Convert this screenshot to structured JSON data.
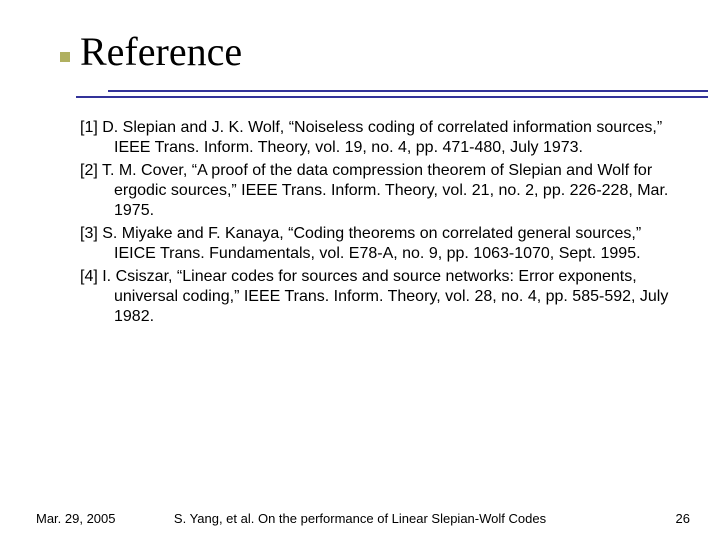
{
  "colors": {
    "rule": "#333399",
    "bullet": "#b0b060",
    "background": "#ffffff",
    "text": "#000000"
  },
  "title": "Reference",
  "references": [
    "[1] D. Slepian and J. K. Wolf, “Noiseless coding of correlated information sources,” IEEE Trans. Inform. Theory, vol. 19, no. 4, pp. 471-480, July 1973.",
    "[2] T. M. Cover, “A proof of the data compression theorem of Slepian and Wolf for ergodic sources,” IEEE Trans. Inform. Theory, vol. 21, no. 2, pp. 226-228, Mar. 1975.",
    "[3] S. Miyake and F. Kanaya, “Coding theorems on correlated general sources,” IEICE Trans. Fundamentals, vol. E78-A, no. 9, pp. 1063-1070, Sept. 1995.",
    "[4] I. Csiszar, “Linear codes for sources and source networks: Error exponents, universal coding,” IEEE Trans. Inform. Theory, vol. 28, no. 4, pp. 585-592, July 1982."
  ],
  "footer": {
    "date": "Mar. 29, 2005",
    "title": "S. Yang, et al. On the performance of Linear Slepian-Wolf Codes",
    "page": "26"
  }
}
